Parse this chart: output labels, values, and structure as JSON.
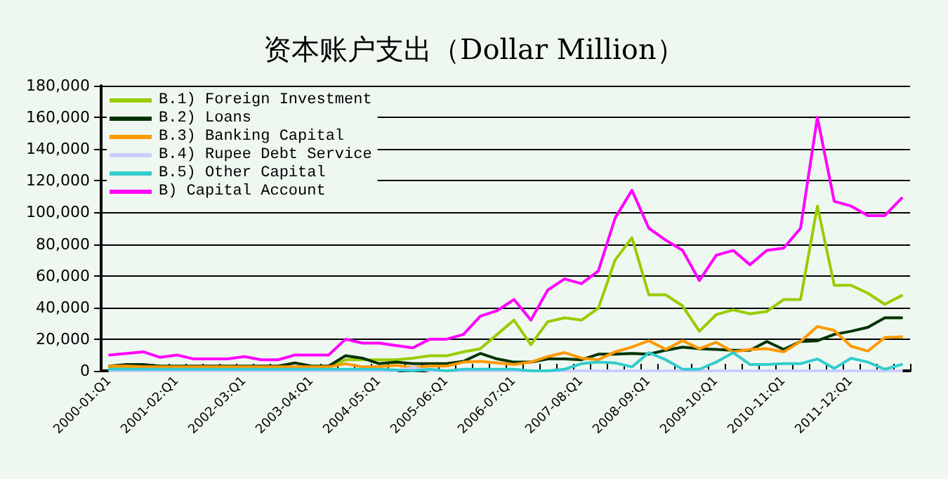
{
  "chart_data": {
    "type": "line",
    "title": "资本账户支出（Dollar Million）",
    "categories": [
      "2000-01:Q1",
      null,
      null,
      null,
      "2001-02:Q1",
      null,
      null,
      null,
      "2002-03:Q1",
      null,
      null,
      null,
      "2003-04:Q1",
      null,
      null,
      null,
      "2004-05:Q1",
      null,
      null,
      null,
      "2005-06:Q1",
      null,
      null,
      null,
      "2006-07:Q1",
      null,
      null,
      null,
      "2007-08:Q1",
      null,
      null,
      null,
      "2008-09:Q1",
      null,
      null,
      null,
      "2009-10:Q1",
      null,
      null,
      null,
      "2010-11:Q1",
      null,
      null,
      null,
      "2011-12:Q1",
      null,
      null,
      null
    ],
    "series": [
      {
        "name": "B.1) Foreign Investment",
        "color": "#99cc00",
        "values": [
          2000,
          2000,
          2000,
          2000,
          2000,
          2000,
          2000,
          2000,
          2000,
          2000,
          2000,
          2000,
          2000,
          2000,
          7000,
          7000,
          7000,
          7000,
          8000,
          9500,
          9500,
          12000,
          14000,
          23000,
          32000,
          16500,
          31000,
          33500,
          32000,
          39500,
          70000,
          84000,
          48000,
          48000,
          41000,
          25000,
          35500,
          38500,
          36000,
          37500,
          45000,
          45000,
          104000,
          54000,
          54000,
          49000,
          42000,
          47500
        ]
      },
      {
        "name": "B.2) Loans",
        "color": "#003300",
        "values": [
          3000,
          4000,
          4000,
          3000,
          3000,
          3000,
          3000,
          3000,
          3000,
          3000,
          3000,
          5000,
          3000,
          3000,
          9500,
          8000,
          4500,
          5500,
          4500,
          4500,
          4500,
          6000,
          11000,
          7500,
          5500,
          5500,
          7500,
          7500,
          7000,
          10500,
          10500,
          11000,
          10500,
          13000,
          15000,
          14000,
          13500,
          13000,
          13000,
          18500,
          13500,
          18500,
          19000,
          23000,
          25000,
          27500,
          33500,
          33500
        ]
      },
      {
        "name": "B.3) Banking Capital",
        "color": "#ff9900",
        "values": [
          3000,
          3000,
          2500,
          2500,
          2500,
          2500,
          2500,
          2500,
          2500,
          2500,
          2500,
          2500,
          2500,
          2500,
          4500,
          2500,
          2500,
          3500,
          2000,
          3000,
          3000,
          5500,
          6000,
          5000,
          4000,
          5500,
          9000,
          11500,
          8000,
          7000,
          12000,
          15000,
          19000,
          13500,
          19000,
          14000,
          18000,
          12000,
          13500,
          14000,
          12000,
          18500,
          28000,
          25500,
          15500,
          12500,
          21000,
          21500
        ]
      },
      {
        "name": "B.4) Rupee Debt Service",
        "color": "#ccccff",
        "values": [
          0,
          0,
          0,
          0,
          0,
          0,
          0,
          0,
          0,
          0,
          0,
          0,
          0,
          0,
          0,
          0,
          0,
          0,
          2000,
          0,
          0,
          0,
          0,
          0,
          0,
          0,
          0,
          0,
          0,
          0,
          0,
          0,
          0,
          0,
          0,
          0,
          0,
          0,
          0,
          0,
          0,
          0,
          0,
          0,
          0,
          0,
          0,
          0
        ]
      },
      {
        "name": "B.5) Other Capital",
        "color": "#33cccc",
        "values": [
          1000,
          1000,
          1000,
          1000,
          1000,
          1000,
          1000,
          1000,
          1000,
          1000,
          1000,
          1000,
          1000,
          1000,
          1000,
          1000,
          1000,
          500,
          0,
          1000,
          0,
          1000,
          1000,
          1000,
          1000,
          0,
          0,
          1000,
          4500,
          5500,
          5000,
          2500,
          11500,
          7000,
          1000,
          1000,
          5500,
          11500,
          4000,
          4000,
          4500,
          4500,
          7500,
          1500,
          8000,
          5500,
          1000,
          4000
        ]
      },
      {
        "name": "B) Capital Account",
        "color": "#ff00ff",
        "values": [
          10000,
          11000,
          12000,
          8500,
          10000,
          7500,
          7500,
          7500,
          9000,
          7000,
          7000,
          10000,
          10000,
          10000,
          20000,
          17500,
          17500,
          16000,
          14500,
          20000,
          20000,
          23000,
          34500,
          38000,
          45000,
          32000,
          51000,
          58000,
          55000,
          63000,
          96500,
          114000,
          90000,
          82500,
          76000,
          57000,
          73000,
          76000,
          67000,
          76000,
          77500,
          90000,
          160000,
          107000,
          104000,
          98000,
          98000,
          109000
        ]
      }
    ],
    "ylim": [
      0,
      180000
    ],
    "yticks": [
      {
        "value": 0,
        "label": "0"
      },
      {
        "value": 20000,
        "label": "20,000"
      },
      {
        "value": 40000,
        "label": "40,000"
      },
      {
        "value": 60000,
        "label": "60,000"
      },
      {
        "value": 80000,
        "label": "80,000"
      },
      {
        "value": 100000,
        "label": "100,000"
      },
      {
        "value": 120000,
        "label": "120,000"
      },
      {
        "value": 140000,
        "label": "140,000"
      },
      {
        "value": 160000,
        "label": "160,000"
      },
      {
        "value": 180000,
        "label": "180,000"
      }
    ],
    "grid": "y",
    "legend": "top left",
    "marker": "none",
    "line_style": "solid"
  }
}
